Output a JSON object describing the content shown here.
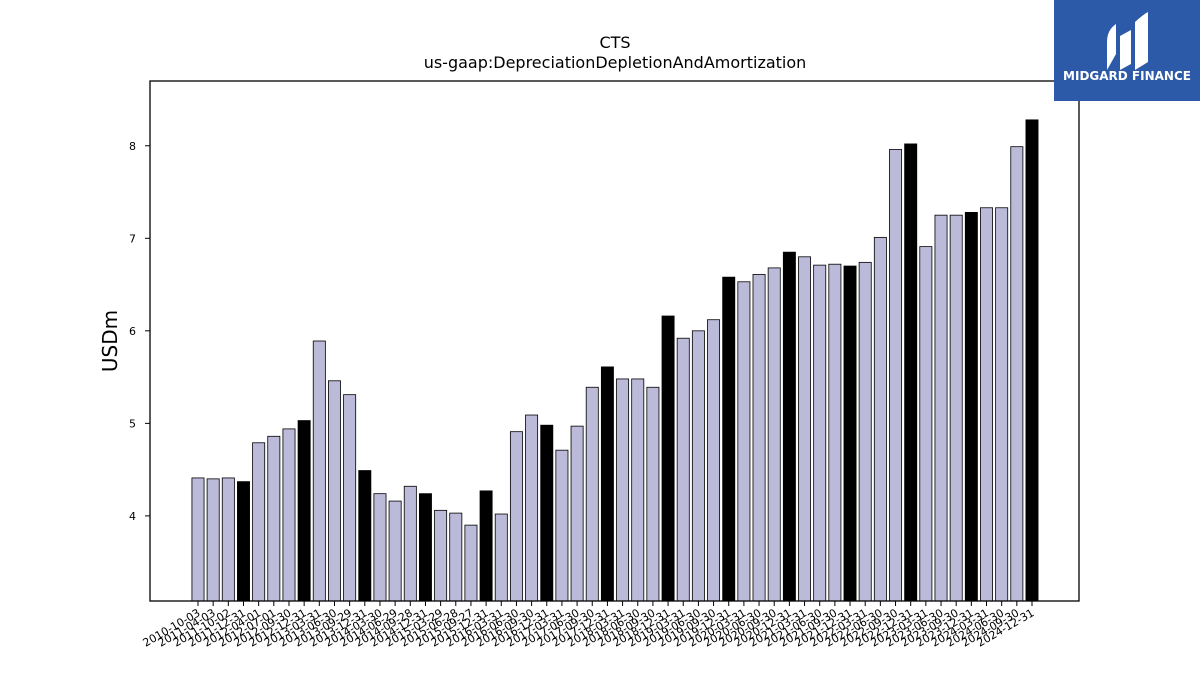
{
  "chart_data": {
    "type": "bar",
    "title": "CTS",
    "subtitle": "us-gaap:DepreciationDepletionAndAmortization",
    "xlabel": "",
    "ylabel": "USDm",
    "ylim": [
      3.08,
      8.7
    ],
    "yticks": [
      4,
      5,
      6,
      7,
      8
    ],
    "grid": false,
    "colors": {
      "bar_default": "#bcbad9",
      "bar_highlight": "#000000",
      "edge": "#000000"
    },
    "categories": [
      "2010-10-03",
      "2011-04-03",
      "2011-10-02",
      "2011-12-31",
      "2012-04-01",
      "2012-07-01",
      "2012-09-30",
      "2012-12-31",
      "2013-03-31",
      "2013-06-30",
      "2013-09-29",
      "2013-12-31",
      "2014-03-30",
      "2014-06-29",
      "2014-09-28",
      "2014-12-31",
      "2015-03-29",
      "2015-06-28",
      "2015-09-27",
      "2015-12-31",
      "2016-03-31",
      "2016-06-30",
      "2016-09-30",
      "2016-12-31",
      "2017-03-31",
      "2017-06-30",
      "2017-09-30",
      "2017-12-31",
      "2018-03-31",
      "2018-06-30",
      "2018-09-30",
      "2018-12-31",
      "2019-03-31",
      "2019-06-30",
      "2019-09-30",
      "2019-12-31",
      "2020-03-31",
      "2020-06-30",
      "2020-09-30",
      "2020-12-31",
      "2021-03-31",
      "2021-06-30",
      "2021-09-30",
      "2021-12-31",
      "2022-03-31",
      "2022-06-30",
      "2022-09-30",
      "2022-12-31",
      "2023-03-31",
      "2023-06-30",
      "2023-09-30",
      "2023-12-31",
      "2024-03-31",
      "2024-06-30",
      "2024-09-30",
      "2024-12-31"
    ],
    "values": [
      4.41,
      4.4,
      4.41,
      4.37,
      4.79,
      4.86,
      4.94,
      5.03,
      5.89,
      5.46,
      5.31,
      4.49,
      4.24,
      4.16,
      4.32,
      4.24,
      4.06,
      4.03,
      3.9,
      4.27,
      4.02,
      4.91,
      5.09,
      4.98,
      4.71,
      4.97,
      5.39,
      5.61,
      5.48,
      5.48,
      5.39,
      6.16,
      5.92,
      6.0,
      6.12,
      6.58,
      6.53,
      6.61,
      6.68,
      6.85,
      6.8,
      6.71,
      6.72,
      6.7,
      6.74,
      7.01,
      7.96,
      8.02,
      6.91,
      7.25,
      7.25,
      7.28,
      7.33,
      7.33,
      7.99,
      8.28
    ],
    "highlight_indices": [
      3,
      7,
      11,
      15,
      19,
      23,
      27,
      31,
      35,
      39,
      43,
      47,
      51,
      55
    ]
  },
  "logo": {
    "text": "MIDGARD FINANCE",
    "color": "#2c5aa8"
  }
}
